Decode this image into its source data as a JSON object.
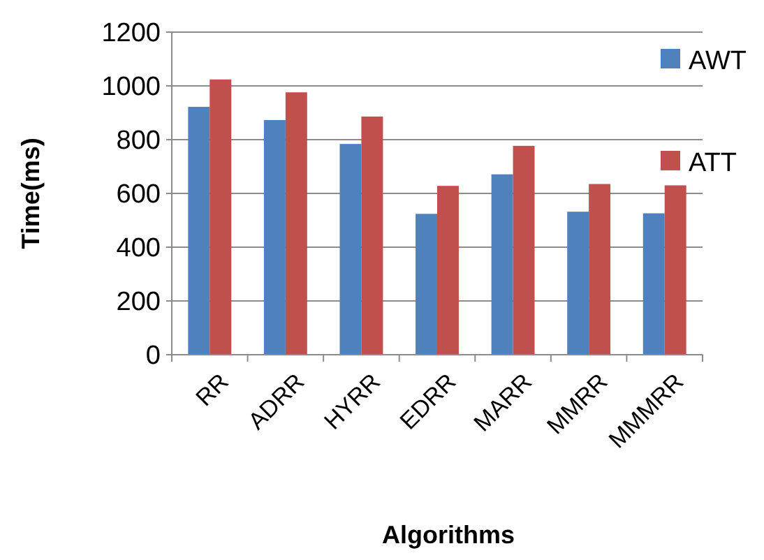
{
  "chart_data": {
    "type": "bar",
    "xlabel": "Algorithms",
    "ylabel": "Time(ms)",
    "categories": [
      "RR",
      "ADRR",
      "HYRR",
      "EDRR",
      "MARR",
      "MMRR",
      "MMMRR"
    ],
    "series": [
      {
        "name": "AWT",
        "color": "#4f81bd",
        "values": [
          922,
          873,
          784,
          524,
          671,
          532,
          526
        ]
      },
      {
        "name": "ATT",
        "color": "#c0504d",
        "values": [
          1024,
          976,
          886,
          628,
          777,
          635,
          630
        ]
      }
    ],
    "ylim": [
      0,
      1200
    ],
    "yticks": [
      0,
      200,
      400,
      600,
      800,
      1000,
      1200
    ],
    "grid": "y",
    "legend": "top right"
  }
}
